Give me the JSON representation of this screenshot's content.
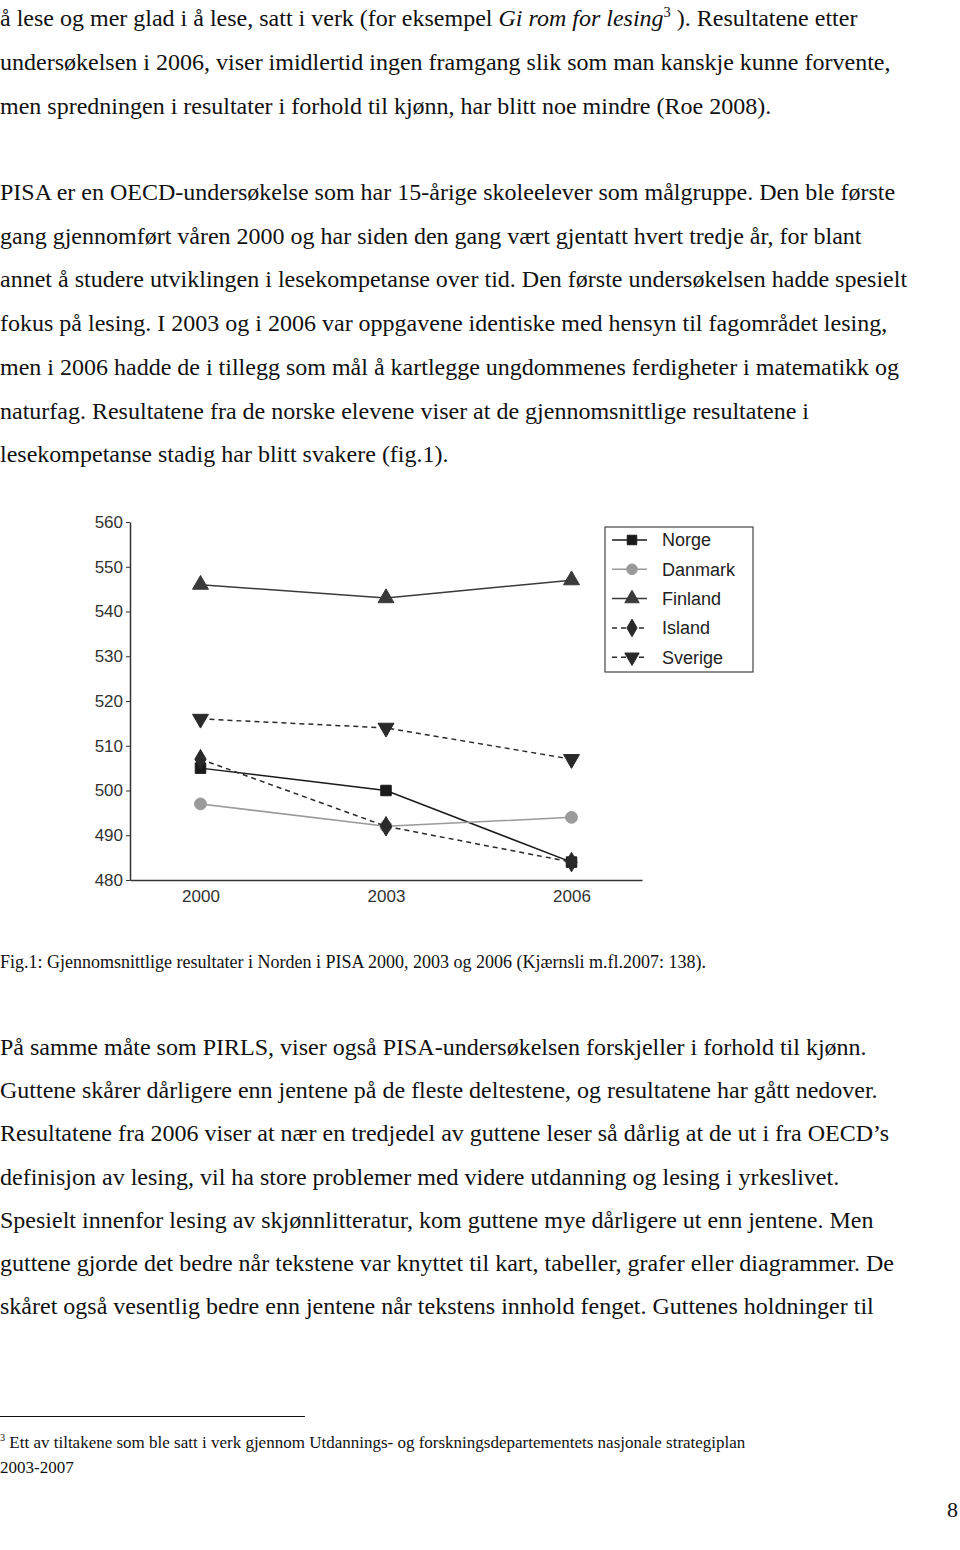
{
  "paragraphs": [
    {
      "lines": [
        [
          {
            "text": "å lese og mer glad i å lese, satt i verk (for eksempel ",
            "style": "normal"
          },
          {
            "text": "Gi rom for lesing",
            "style": "italic"
          },
          {
            "text": "3",
            "style": "superscript"
          },
          {
            "text": " ). Resultatene etter",
            "style": "normal"
          }
        ],
        "undersøkelsen i 2006, viser imidlertid ingen framgang slik som man kanskje kunne forvente,",
        "men spredningen i resultater i forhold til kjønn, har blitt noe mindre (Roe 2008)."
      ]
    },
    {
      "lines": [
        "PISA er en OECD-undersøkelse som har 15-årige skoleelever som målgruppe. Den ble første",
        "gang gjennomført våren 2000 og har siden den gang vært gjentatt hvert tredje år, for blant",
        "annet å studere utviklingen i lesekompetanse over tid. Den første undersøkelsen hadde spesielt",
        "fokus på lesing. I 2003 og i 2006 var oppgavene identiske med hensyn til fagområdet lesing,",
        "men i 2006 hadde de i tillegg som mål å kartlegge ungdommenes ferdigheter i matematikk og",
        "naturfag. Resultatene fra de norske elevene viser at de gjennomsnittlige resultatene i",
        "lesekompetanse stadig har blitt svakere (fig.1)."
      ]
    },
    {
      "lines": [
        "På samme måte som PIRLS, viser også PISA-undersøkelsen forskjeller i forhold til kjønn.",
        "Guttene skårer dårligere enn jentene på de fleste deltestene, og resultatene har gått nedover.",
        "Resultatene fra 2006 viser at nær en tredjedel av guttene leser så dårlig at de ut i fra OECD’s",
        "definisjon av lesing, vil ha store problemer med videre utdanning og lesing i yrkeslivet.",
        "Spesielt innenfor lesing av skjønnlitteratur, kom guttene mye dårligere ut enn jentene. Men",
        "guttene gjorde det bedre når tekstene var knyttet til kart, tabeller, grafer eller diagrammer. De",
        "skåret også vesentlig bedre enn jentene når tekstens innhold fenget. Guttenes holdninger til"
      ]
    }
  ],
  "chart_data": {
    "type": "line",
    "categories": [
      "2000",
      "2003",
      "2006"
    ],
    "series": [
      {
        "name": "Norge",
        "color": "#1a1a1a",
        "marker": "square",
        "line_style": "solid",
        "values": [
          505,
          500,
          484
        ]
      },
      {
        "name": "Danmark",
        "color": "#9a9a9a",
        "marker": "circle",
        "line_style": "solid",
        "values": [
          497,
          492,
          494
        ]
      },
      {
        "name": "Finland",
        "color": "#3a3a3a",
        "marker": "triangle-up",
        "line_style": "solid",
        "values": [
          546,
          543,
          547
        ]
      },
      {
        "name": "Island",
        "color": "#2a2a2a",
        "marker": "diamond",
        "line_style": "dashed",
        "values": [
          507,
          492,
          484
        ]
      },
      {
        "name": "Sverige",
        "color": "#2a2a2a",
        "marker": "triangle-down",
        "line_style": "dashed",
        "values": [
          516,
          514,
          507
        ]
      }
    ],
    "ylim": [
      480,
      560
    ],
    "yticks": [
      480,
      490,
      500,
      510,
      520,
      530,
      540,
      550,
      560
    ],
    "legend": "upper right"
  },
  "figure_caption": "Fig.1: Gjennomsnittlige resultater i Norden i PISA 2000, 2003 og 2006 (Kjærnsli m.fl.2007: 138).",
  "footnote": {
    "lines": [
      [
        {
          "text": "3",
          "style": "superscript"
        },
        {
          "text": " Ett av tiltakene som ble satt i verk gjennom Utdannings- og forskningsdepartementets nasjonale strategiplan",
          "style": "normal"
        }
      ],
      "2003-2007"
    ]
  },
  "page_number": "8"
}
